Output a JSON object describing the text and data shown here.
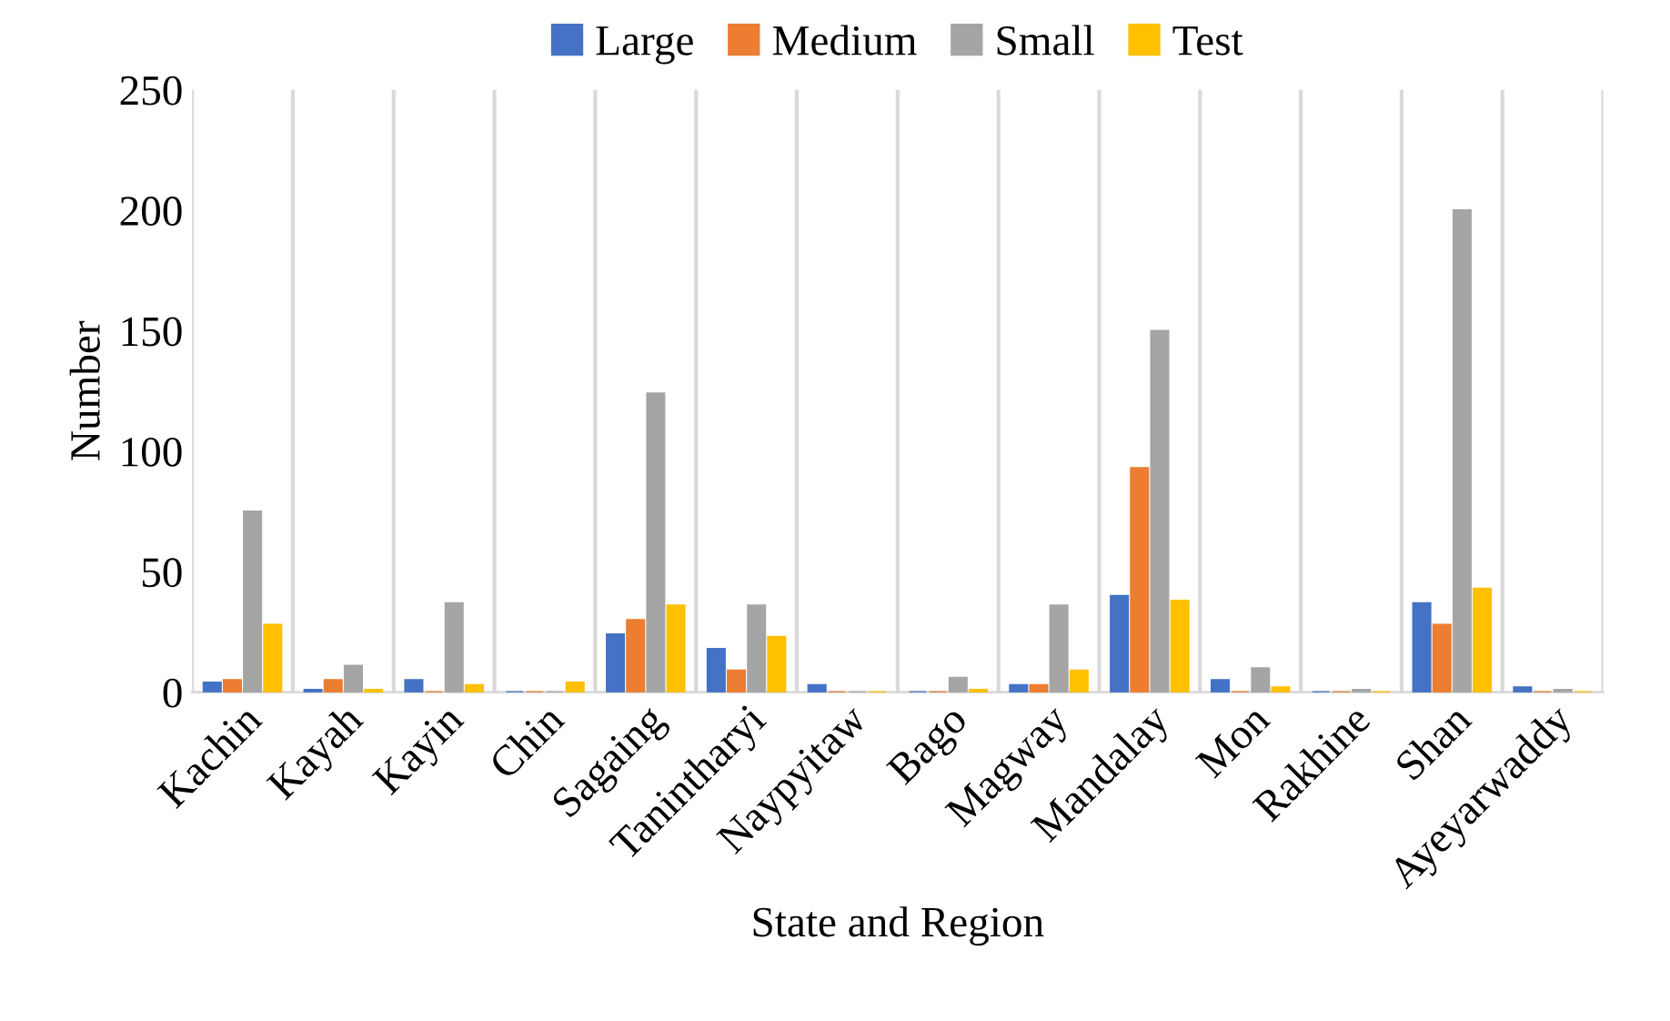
{
  "chart_data": {
    "type": "bar",
    "xlabel": "State and Region",
    "ylabel": "Number",
    "categories": [
      "Kachin",
      "Kayah",
      "Kayin",
      "Chin",
      "Sagaing",
      "Tanintharyi",
      "Naypyitaw",
      "Bago",
      "Magway",
      "Mandalay",
      "Mon",
      "Rakhine",
      "Shan",
      "Ayeyarwaddy"
    ],
    "series": [
      {
        "name": "Large",
        "color": "#4472c4",
        "values": [
          4,
          1,
          5,
          0,
          24,
          18,
          3,
          0,
          3,
          40,
          5,
          0,
          37,
          2
        ]
      },
      {
        "name": "Medium",
        "color": "#ed7d31",
        "values": [
          5,
          5,
          0,
          0,
          30,
          9,
          0,
          0,
          3,
          93,
          0,
          0,
          28,
          0
        ]
      },
      {
        "name": "Small",
        "color": "#a5a5a5",
        "values": [
          75,
          11,
          37,
          0,
          124,
          36,
          0,
          6,
          36,
          150,
          10,
          1,
          200,
          1
        ]
      },
      {
        "name": "Test",
        "color": "#ffc000",
        "values": [
          28,
          1,
          3,
          4,
          36,
          23,
          0,
          1,
          9,
          38,
          2,
          0,
          43,
          0
        ]
      }
    ],
    "ylim": [
      0,
      250
    ],
    "yticks": [
      0,
      50,
      100,
      150,
      200,
      250
    ],
    "grid": "x",
    "legend": "top"
  }
}
